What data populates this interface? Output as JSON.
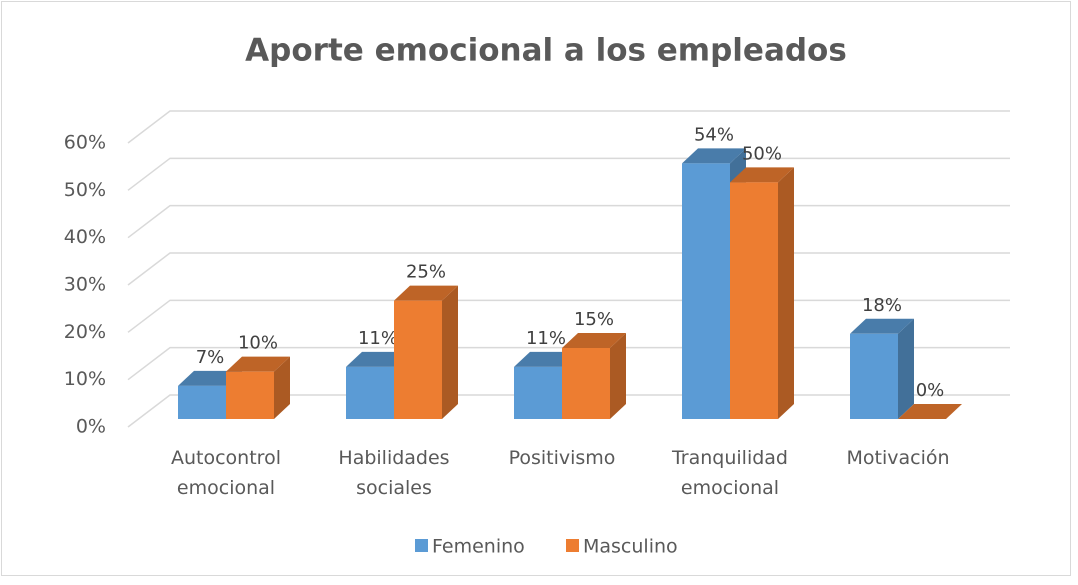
{
  "chart_data": {
    "type": "bar3d",
    "title": "Aporte emocional a los empleados",
    "categories": [
      "Autocontrol emocional",
      "Habilidades sociales",
      "Positivismo",
      "Tranquilidad emocional",
      "Motivación"
    ],
    "series": [
      {
        "name": "Femenino",
        "color": "#5b9bd5",
        "values": [
          7,
          11,
          11,
          54,
          18
        ],
        "value_labels": [
          "7%",
          "11%",
          "11%",
          "54%",
          "18%"
        ]
      },
      {
        "name": "Masculino",
        "color": "#ed7d31",
        "values": [
          10,
          25,
          15,
          50,
          0
        ],
        "value_labels": [
          "10%",
          "25%",
          "15%",
          "50%",
          "0%"
        ]
      }
    ],
    "ylim": [
      0,
      60
    ],
    "yticks": [
      {
        "value": 0,
        "label": "0%"
      },
      {
        "value": 10,
        "label": "10%"
      },
      {
        "value": 20,
        "label": "20%"
      },
      {
        "value": 30,
        "label": "30%"
      },
      {
        "value": 40,
        "label": "40%"
      },
      {
        "value": 50,
        "label": "50%"
      },
      {
        "value": 60,
        "label": "60%"
      }
    ],
    "grid": true,
    "legend": "bottom"
  }
}
